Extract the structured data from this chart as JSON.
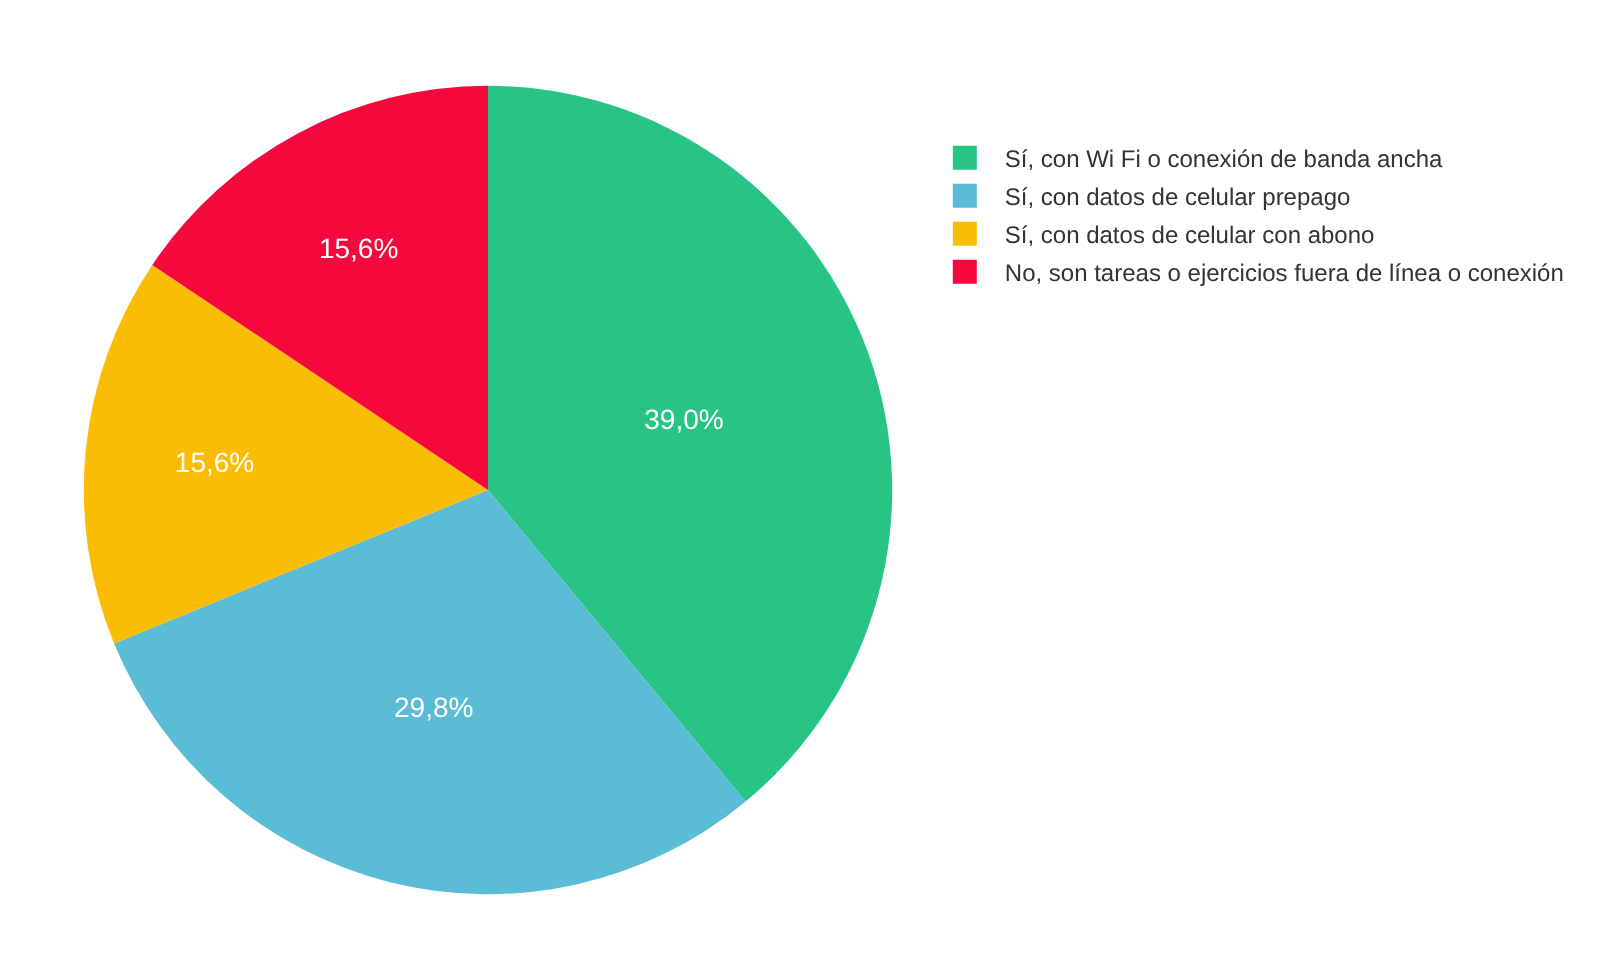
{
  "chart_data": {
    "type": "pie",
    "categories": [
      "Sí, con Wi Fi o conexión de banda ancha",
      "Sí, con datos de celular prepago",
      "Sí, con datos de celular con abono",
      "No, son tareas o ejercicios fuera de línea o conexión"
    ],
    "values": [
      39.0,
      29.8,
      15.6,
      15.6
    ],
    "colors": [
      "#27c485",
      "#5bbcd6",
      "#fbbc04",
      "#f5093c"
    ],
    "value_labels": [
      "39,0%",
      "29,8%",
      "15,6%",
      "15,6%"
    ],
    "legend": "top right"
  }
}
